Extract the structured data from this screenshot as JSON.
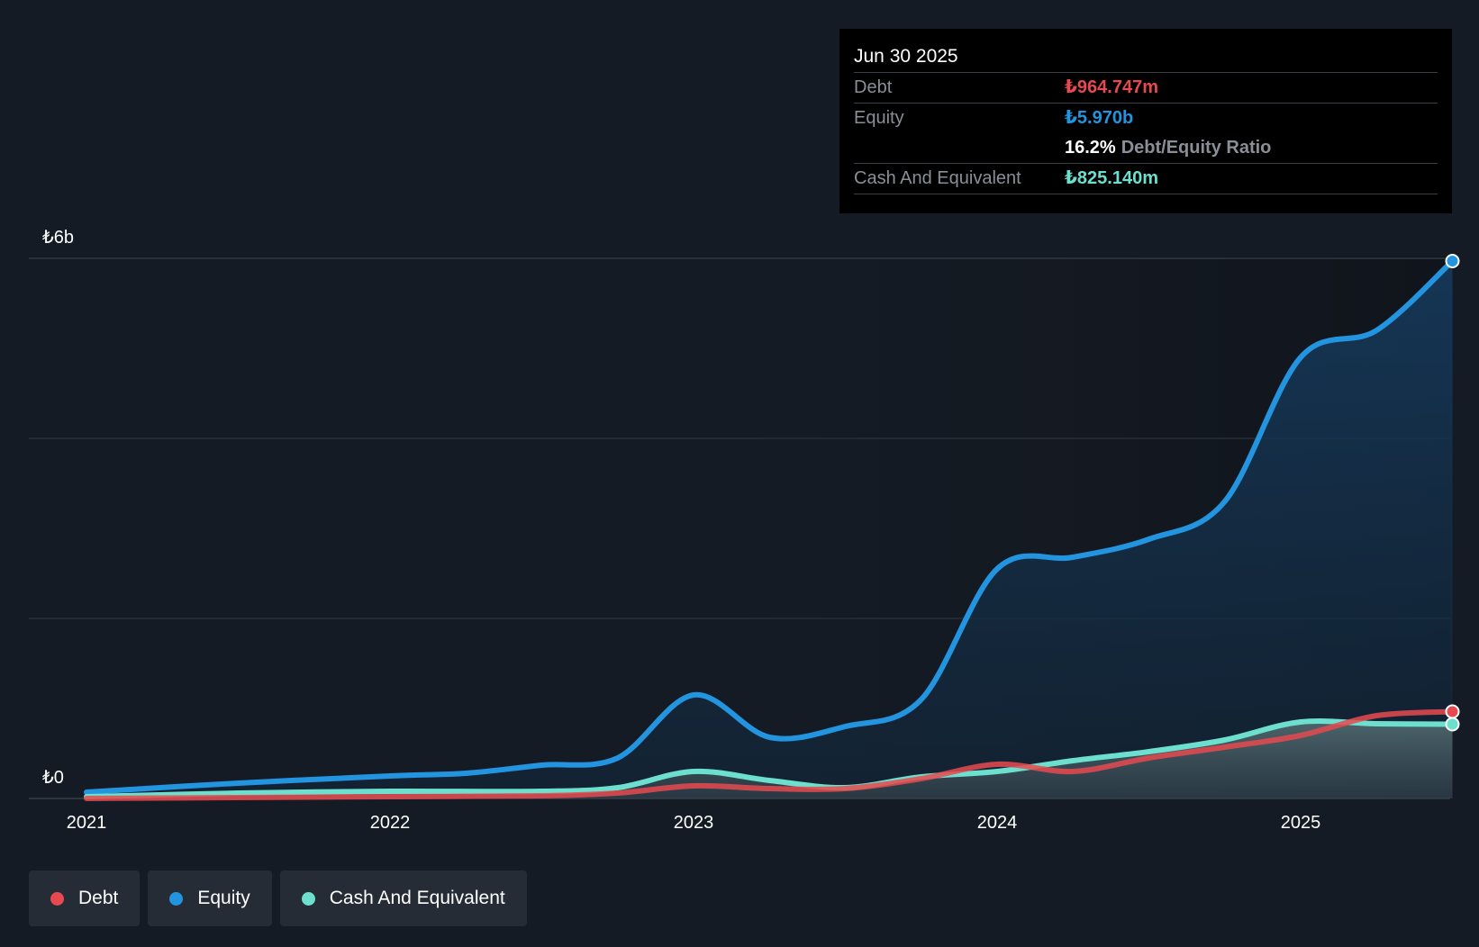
{
  "chart_data": {
    "type": "area",
    "y_axis": {
      "ticks": [
        "₺6b",
        "₺0"
      ],
      "ylim": [
        0,
        6
      ]
    },
    "x_axis": {
      "ticks": [
        "2021",
        "2022",
        "2023",
        "2024",
        "2025"
      ]
    },
    "units": "billions TRY",
    "series": [
      {
        "name": "Equity",
        "color": "#2394df",
        "points": [
          [
            2021.0,
            0.07
          ],
          [
            2021.5,
            0.17
          ],
          [
            2022.0,
            0.25
          ],
          [
            2022.25,
            0.28
          ],
          [
            2022.5,
            0.37
          ],
          [
            2022.75,
            0.45
          ],
          [
            2023.0,
            1.15
          ],
          [
            2023.25,
            0.68
          ],
          [
            2023.5,
            0.8
          ],
          [
            2023.75,
            1.1
          ],
          [
            2024.0,
            2.55
          ],
          [
            2024.25,
            2.68
          ],
          [
            2024.5,
            2.88
          ],
          [
            2024.75,
            3.3
          ],
          [
            2025.0,
            4.9
          ],
          [
            2025.25,
            5.2
          ],
          [
            2025.5,
            5.97
          ]
        ]
      },
      {
        "name": "Debt",
        "color": "#e64a4f",
        "points": [
          [
            2021.0,
            0.0
          ],
          [
            2021.5,
            0.01
          ],
          [
            2022.0,
            0.02
          ],
          [
            2022.5,
            0.03
          ],
          [
            2022.75,
            0.06
          ],
          [
            2023.0,
            0.14
          ],
          [
            2023.25,
            0.11
          ],
          [
            2023.5,
            0.11
          ],
          [
            2023.75,
            0.22
          ],
          [
            2024.0,
            0.38
          ],
          [
            2024.25,
            0.3
          ],
          [
            2024.5,
            0.45
          ],
          [
            2024.75,
            0.57
          ],
          [
            2025.0,
            0.7
          ],
          [
            2025.25,
            0.92
          ],
          [
            2025.5,
            0.965
          ]
        ]
      },
      {
        "name": "Cash And Equivalent",
        "color": "#6cdfcf",
        "points": [
          [
            2021.0,
            0.02
          ],
          [
            2021.5,
            0.06
          ],
          [
            2022.0,
            0.08
          ],
          [
            2022.5,
            0.08
          ],
          [
            2022.75,
            0.12
          ],
          [
            2023.0,
            0.3
          ],
          [
            2023.25,
            0.2
          ],
          [
            2023.5,
            0.12
          ],
          [
            2023.75,
            0.24
          ],
          [
            2024.0,
            0.3
          ],
          [
            2024.25,
            0.42
          ],
          [
            2024.5,
            0.52
          ],
          [
            2024.75,
            0.65
          ],
          [
            2025.0,
            0.85
          ],
          [
            2025.25,
            0.83
          ],
          [
            2025.5,
            0.825
          ]
        ]
      }
    ]
  },
  "tooltip": {
    "date": "Jun 30 2025",
    "debt_label": "Debt",
    "debt_value": "₺964.747m",
    "equity_label": "Equity",
    "equity_value": "₺5.970b",
    "ratio_value": "16.2%",
    "ratio_label": "Debt/Equity Ratio",
    "cash_label": "Cash And Equivalent",
    "cash_value": "₺825.140m"
  },
  "legend": [
    {
      "label": "Debt",
      "color": "#e64a4f"
    },
    {
      "label": "Equity",
      "color": "#2394df"
    },
    {
      "label": "Cash And Equivalent",
      "color": "#6cdfcf"
    }
  ],
  "colors": {
    "background": "#151b24",
    "debt": "#e64a4f",
    "equity": "#2394df",
    "cash": "#6cdfcf"
  }
}
